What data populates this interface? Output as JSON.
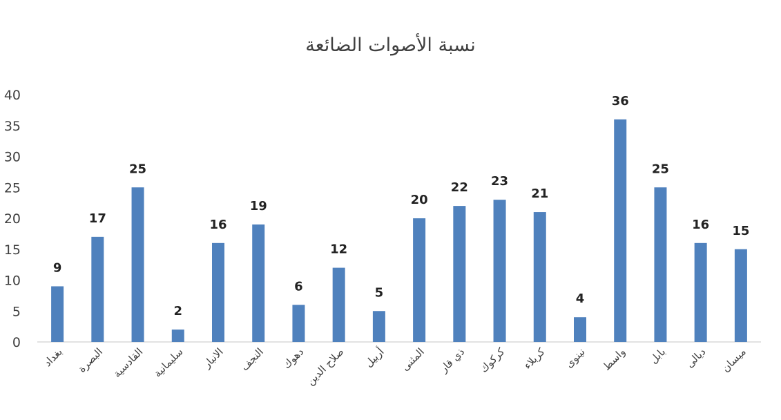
{
  "chart_data": {
    "type": "bar",
    "title": "نسبة الأصوات الضائعة",
    "categories": [
      "بغداد",
      "البصرة",
      "القادسية",
      "سليمانية",
      "الانبار",
      "النجف",
      "دهوك",
      "صلاح الدين",
      "أربيل",
      "المثنى",
      "ذي قار",
      "كركوك",
      "كربلاء",
      "نينوى",
      "واسط",
      "بابل",
      "ديالى",
      "ميسان"
    ],
    "series": [
      {
        "values": [
          9,
          17,
          25,
          2,
          16,
          19,
          6,
          12,
          5,
          20,
          22,
          23,
          21,
          4,
          36,
          25,
          16,
          15
        ]
      }
    ],
    "ylim": [
      0,
      40
    ],
    "yticks": [
      0,
      5,
      10,
      15,
      20,
      25,
      30,
      35,
      40
    ],
    "grid": false,
    "legend": "none",
    "bar_color": "#4f81bd",
    "axis_color": "#d9d9d9"
  }
}
